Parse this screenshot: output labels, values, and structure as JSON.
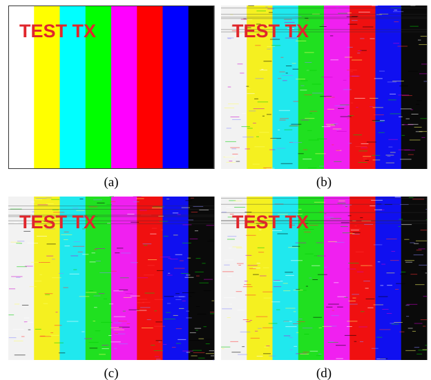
{
  "panels": [
    {
      "overlay": "TEST TX",
      "caption": "(a)"
    },
    {
      "overlay": "TEST TX",
      "caption": "(b)"
    },
    {
      "overlay": "TEST TX",
      "caption": "(c)"
    },
    {
      "overlay": "TEST TX",
      "caption": "(d)"
    }
  ]
}
